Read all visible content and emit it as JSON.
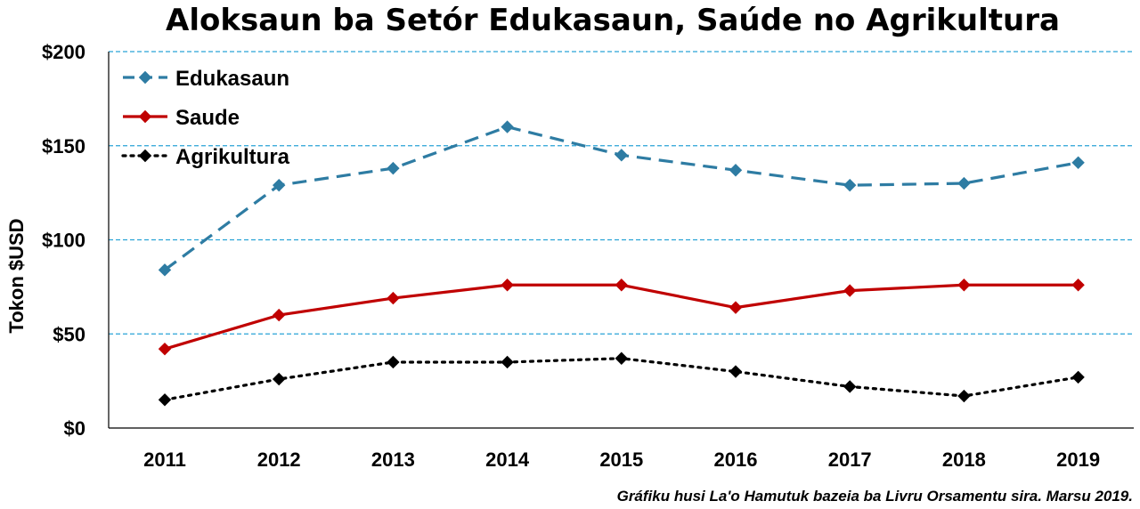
{
  "chart_data": {
    "type": "line",
    "title": "Aloksaun ba Setór Edukasaun, Saúde no Agrikultura",
    "ylabel": "Tokon $USD",
    "xlabel": "",
    "footnote": "Gráfiku husi La'o Hamutuk bazeia ba Livru Orsamentu sira. Marsu 2019.",
    "categories": [
      "2011",
      "2012",
      "2013",
      "2014",
      "2015",
      "2016",
      "2017",
      "2018",
      "2019"
    ],
    "ylim": [
      0,
      200
    ],
    "yticks": [
      0,
      50,
      100,
      150,
      200
    ],
    "ytick_labels": [
      "$0",
      "$50",
      "$100",
      "$150",
      "$200"
    ],
    "grid": "horizontal dashed",
    "legend_position": "top-left",
    "series": [
      {
        "name": "Edukasaun",
        "values": [
          84,
          129,
          138,
          160,
          145,
          137,
          129,
          130,
          141
        ],
        "color": "#2e7ca3",
        "line_style": "dashed",
        "marker": "diamond"
      },
      {
        "name": "Saude",
        "values": [
          42,
          60,
          69,
          76,
          76,
          64,
          73,
          76,
          76
        ],
        "color": "#c00000",
        "line_style": "solid",
        "marker": "diamond"
      },
      {
        "name": "Agrikultura",
        "values": [
          15,
          26,
          35,
          35,
          37,
          30,
          22,
          17,
          27
        ],
        "color": "#000000",
        "line_style": "dotted",
        "marker": "diamond"
      }
    ]
  }
}
